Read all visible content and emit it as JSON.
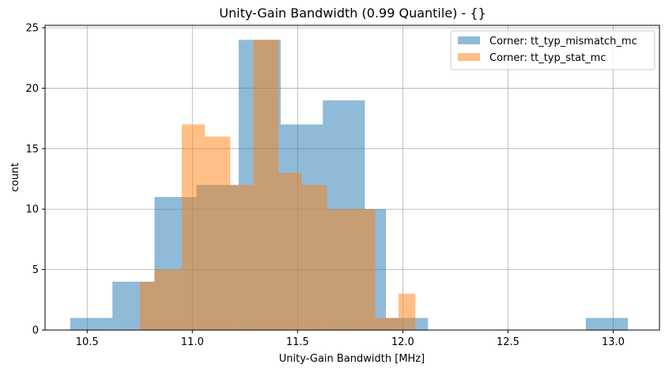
{
  "chart_data": {
    "type": "bar",
    "title": "Unity-Gain Bandwidth (0.99 Quantile) - {}",
    "xlabel": "Unity-Gain Bandwidth [MHz]",
    "ylabel": "count",
    "xlim": [
      10.3,
      13.22
    ],
    "ylim": [
      0,
      25.2
    ],
    "xticks": [
      10.5,
      11.0,
      11.5,
      12.0,
      12.5,
      13.0
    ],
    "xtick_labels": [
      "10.5",
      "11.0",
      "11.5",
      "12.0",
      "12.5",
      "13.0"
    ],
    "yticks": [
      0,
      5,
      10,
      15,
      20,
      25
    ],
    "ytick_labels": [
      "0",
      "5",
      "10",
      "15",
      "20",
      "25"
    ],
    "grid": true,
    "legend_position": "top-right",
    "series": [
      {
        "name": "Corner: tt_typ_mismatch_mc",
        "color": "#1f77b4",
        "alpha": 0.5,
        "bins": [
          [
            10.42,
            10.62,
            1
          ],
          [
            10.62,
            10.82,
            4
          ],
          [
            10.82,
            11.02,
            11
          ],
          [
            11.02,
            11.22,
            12
          ],
          [
            11.22,
            11.42,
            24
          ],
          [
            11.42,
            11.62,
            17
          ],
          [
            11.62,
            11.82,
            19
          ],
          [
            11.82,
            11.92,
            10
          ],
          [
            11.92,
            12.12,
            1
          ],
          [
            12.87,
            13.07,
            1
          ]
        ]
      },
      {
        "name": "Corner: tt_typ_stat_mc",
        "color": "#ff7f0e",
        "alpha": 0.5,
        "bins": [
          [
            10.75,
            10.82,
            4
          ],
          [
            10.82,
            10.95,
            5
          ],
          [
            10.95,
            11.06,
            17
          ],
          [
            11.06,
            11.18,
            16
          ],
          [
            11.18,
            11.29,
            12
          ],
          [
            11.29,
            11.41,
            24
          ],
          [
            11.41,
            11.52,
            13
          ],
          [
            11.52,
            11.64,
            12
          ],
          [
            11.64,
            11.75,
            10
          ],
          [
            11.75,
            11.87,
            10
          ],
          [
            11.87,
            11.98,
            1
          ],
          [
            11.98,
            12.06,
            3
          ]
        ]
      }
    ]
  }
}
